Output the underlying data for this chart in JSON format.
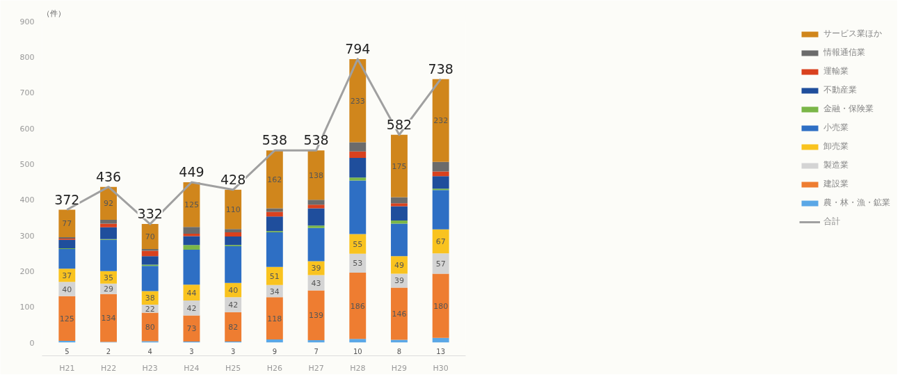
{
  "chart_data": {
    "type": "bar",
    "stacked": true,
    "ylabel": "（件）",
    "categories": [
      "H21",
      "H22",
      "H23",
      "H24",
      "H25",
      "H26",
      "H27",
      "H28",
      "H29",
      "H30"
    ],
    "ylim": [
      0,
      900
    ],
    "yticks": [
      0,
      100,
      200,
      300,
      400,
      500,
      600,
      700,
      800,
      900
    ],
    "grid": false,
    "legend": "right",
    "series": [
      {
        "name": "農・林・漁・鉱業",
        "color": "#5aa7e6",
        "values": [
          5,
          2,
          4,
          3,
          3,
          9,
          7,
          10,
          8,
          13
        ],
        "value_labels": [
          "5",
          "2",
          "4",
          "3",
          "3",
          "9",
          "7",
          "10",
          "8",
          "13"
        ]
      },
      {
        "name": "建設業",
        "color": "#ee7d31",
        "values": [
          125,
          134,
          80,
          73,
          82,
          118,
          139,
          186,
          146,
          180
        ],
        "value_labels": [
          "125",
          "134",
          "80",
          "73",
          "82",
          "118",
          "139",
          "186",
          "146",
          "180"
        ]
      },
      {
        "name": "製造業",
        "color": "#d4d4d4",
        "values": [
          40,
          29,
          22,
          42,
          42,
          34,
          43,
          53,
          39,
          57
        ],
        "value_labels": [
          "40",
          "29",
          "22",
          "42",
          "42",
          "34",
          "43",
          "53",
          "39",
          "57"
        ]
      },
      {
        "name": "卸売業",
        "color": "#f9c31f",
        "values": [
          37,
          35,
          38,
          44,
          40,
          51,
          39,
          55,
          49,
          67
        ],
        "value_labels": [
          "37",
          "35",
          "38",
          "44",
          "40",
          "51",
          "39",
          "55",
          "49",
          "67"
        ]
      },
      {
        "name": "小売業",
        "color": "#2e6fc4",
        "values": [
          55,
          88,
          71,
          98,
          103,
          97,
          93,
          150,
          91,
          110
        ]
      },
      {
        "name": "金融・保険業",
        "color": "#7ab648",
        "values": [
          2,
          2,
          3,
          13,
          3,
          3,
          7,
          8,
          9,
          4
        ]
      },
      {
        "name": "不動産業",
        "color": "#1f4e9c",
        "values": [
          24,
          33,
          24,
          25,
          24,
          41,
          48,
          55,
          40,
          35
        ]
      },
      {
        "name": "運輸業",
        "color": "#d9411e",
        "values": [
          3,
          10,
          15,
          7,
          12,
          13,
          10,
          18,
          8,
          13
        ]
      },
      {
        "name": "情報通信業",
        "color": "#6b6b6b",
        "values": [
          4,
          11,
          5,
          19,
          9,
          10,
          14,
          26,
          17,
          27
        ]
      },
      {
        "name": "サービス業ほか",
        "color": "#d0861c",
        "values": [
          77,
          92,
          70,
          125,
          110,
          162,
          138,
          233,
          175,
          232
        ],
        "value_labels": [
          "77",
          "92",
          "70",
          "125",
          "110",
          "162",
          "138",
          "233",
          "175",
          "232"
        ]
      },
      {
        "name": "合計",
        "type": "line",
        "color": "#a0a0a0",
        "values": [
          372,
          436,
          332,
          449,
          428,
          538,
          538,
          794,
          582,
          738
        ],
        "value_labels": [
          "372",
          "436",
          "332",
          "449",
          "428",
          "538",
          "538",
          "794",
          "582",
          "738"
        ]
      }
    ]
  }
}
